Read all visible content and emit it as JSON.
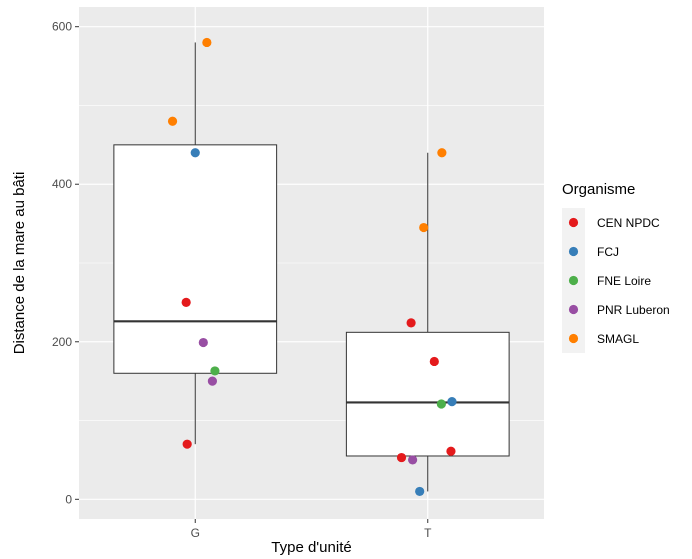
{
  "chart_data": {
    "type": "boxplot",
    "xlabel": "Type d'unité",
    "ylabel": "Distance de la mare au bâti",
    "categories": [
      "G",
      "T"
    ],
    "ylim": [
      -25,
      625
    ],
    "yticks": [
      0,
      200,
      400,
      600
    ],
    "grid": true,
    "legend_position": "right",
    "legend": {
      "title": "Organisme",
      "entries": [
        {
          "label": "CEN NPDC",
          "color": "#e41a1c"
        },
        {
          "label": "FCJ",
          "color": "#377eb8"
        },
        {
          "label": "FNE Loire",
          "color": "#4daf4a"
        },
        {
          "label": "PNR Luberon",
          "color": "#984ea3"
        },
        {
          "label": "SMAGL",
          "color": "#ff7f00"
        }
      ]
    },
    "boxes": [
      {
        "category": "G",
        "whisker_low": 70,
        "q1": 160,
        "median": 226,
        "q3": 450,
        "whisker_high": 580
      },
      {
        "category": "T",
        "whisker_low": 10,
        "q1": 55,
        "median": 123,
        "q3": 212,
        "whisker_high": 440
      }
    ],
    "points": [
      {
        "category": "G",
        "jitter": -0.45,
        "y": 480,
        "group": "SMAGL"
      },
      {
        "category": "G",
        "jitter": 0.23,
        "y": 580,
        "group": "SMAGL"
      },
      {
        "category": "G",
        "jitter": 0.0,
        "y": 440,
        "group": "FCJ"
      },
      {
        "category": "G",
        "jitter": -0.18,
        "y": 250,
        "group": "CEN NPDC"
      },
      {
        "category": "G",
        "jitter": 0.16,
        "y": 199,
        "group": "PNR Luberon"
      },
      {
        "category": "G",
        "jitter": 0.39,
        "y": 163,
        "group": "FNE Loire"
      },
      {
        "category": "G",
        "jitter": 0.34,
        "y": 150,
        "group": "PNR Luberon"
      },
      {
        "category": "G",
        "jitter": -0.16,
        "y": 70,
        "group": "CEN NPDC"
      },
      {
        "category": "T",
        "jitter": 0.28,
        "y": 440,
        "group": "SMAGL"
      },
      {
        "category": "T",
        "jitter": -0.08,
        "y": 345,
        "group": "SMAGL"
      },
      {
        "category": "T",
        "jitter": -0.33,
        "y": 224,
        "group": "CEN NPDC"
      },
      {
        "category": "T",
        "jitter": 0.13,
        "y": 175,
        "group": "CEN NPDC"
      },
      {
        "category": "T",
        "jitter": 0.48,
        "y": 124,
        "group": "FCJ"
      },
      {
        "category": "T",
        "jitter": 0.27,
        "y": 121,
        "group": "FNE Loire"
      },
      {
        "category": "T",
        "jitter": 0.46,
        "y": 61,
        "group": "CEN NPDC"
      },
      {
        "category": "T",
        "jitter": -0.52,
        "y": 53,
        "group": "CEN NPDC"
      },
      {
        "category": "T",
        "jitter": -0.3,
        "y": 50,
        "group": "PNR Luberon"
      },
      {
        "category": "T",
        "jitter": -0.16,
        "y": 10,
        "group": "FCJ"
      }
    ]
  }
}
